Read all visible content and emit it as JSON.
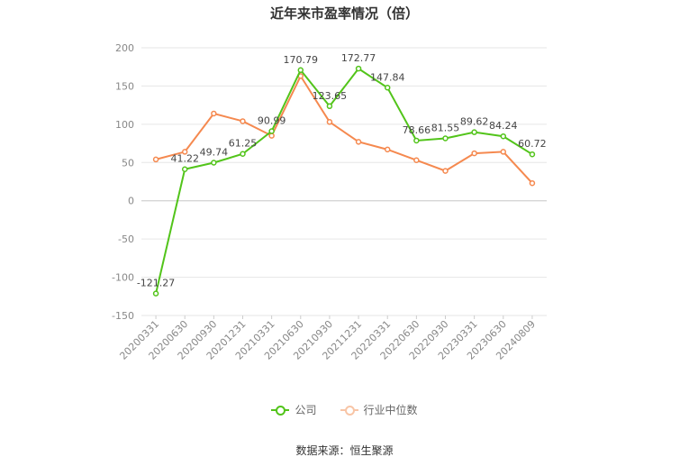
{
  "title": "近年来市盈率情况（倍）",
  "source": "数据来源：恒生聚源",
  "chart_data": {
    "type": "line",
    "ylim": [
      -150,
      200
    ],
    "yticks": [
      200,
      150,
      100,
      50,
      0,
      -50,
      -100,
      -150
    ],
    "grid": true,
    "legend_position": "bottom",
    "categories": [
      "20200331",
      "20200630",
      "20200930",
      "20201231",
      "20210331",
      "20210630",
      "20210930",
      "20211231",
      "20220331",
      "20220630",
      "20220930",
      "20230331",
      "20230630",
      "20240809"
    ],
    "series": [
      {
        "name": "公司",
        "color": "#52c41a",
        "values": [
          -121.27,
          41.22,
          49.74,
          61.25,
          90.99,
          170.79,
          123.65,
          172.77,
          147.84,
          78.66,
          81.55,
          89.62,
          84.24,
          60.72
        ],
        "labels": [
          "-121.27",
          "41.22",
          "49.74",
          "61.25",
          "90.99",
          "170.79",
          "123.65",
          "172.77",
          "147.84",
          "78.66",
          "81.55",
          "89.62",
          "84.24",
          "60.72"
        ]
      },
      {
        "name": "行业中位数",
        "color": "#f5894f",
        "values": [
          54,
          64,
          114,
          104,
          85,
          163,
          103,
          77,
          67,
          53,
          39,
          62,
          64,
          23
        ]
      }
    ]
  }
}
